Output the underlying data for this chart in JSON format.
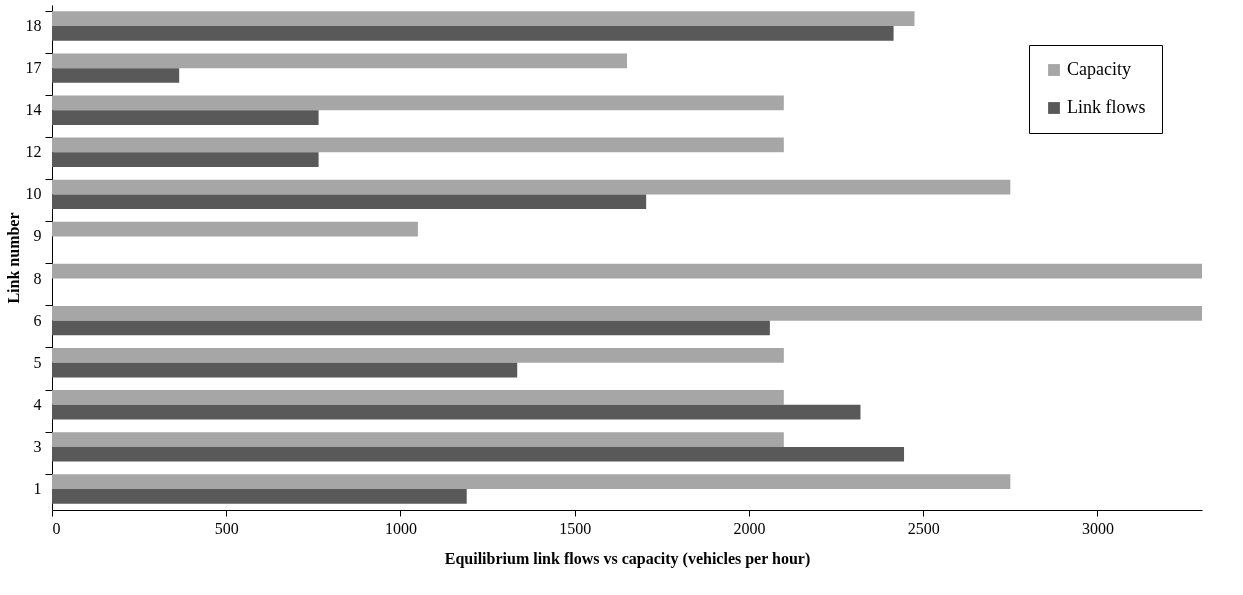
{
  "chart_data": {
    "type": "bar",
    "orientation": "horizontal",
    "xlabel": "Equilibrium link flows vs capacity (vehicles per hour)",
    "ylabel": "Link number",
    "categories": [
      "18",
      "17",
      "14",
      "12",
      "10",
      "9",
      "8",
      "6",
      "5",
      "4",
      "3",
      "1"
    ],
    "series": [
      {
        "name": "Capacity",
        "color": "#a6a6a6",
        "values": [
          2475,
          1650,
          2100,
          2100,
          2750,
          1050,
          3300,
          3300,
          2100,
          2100,
          2100,
          2750
        ]
      },
      {
        "name": "Link flows",
        "color": "#595959",
        "values": [
          2415,
          365,
          765,
          765,
          1705,
          null,
          null,
          2060,
          1335,
          2320,
          2445,
          1190
        ]
      }
    ],
    "xlim": [
      0,
      3300
    ],
    "xticks": [
      0,
      500,
      1000,
      1500,
      2000,
      2500,
      3000
    ],
    "grid": false,
    "legend": "top right"
  }
}
